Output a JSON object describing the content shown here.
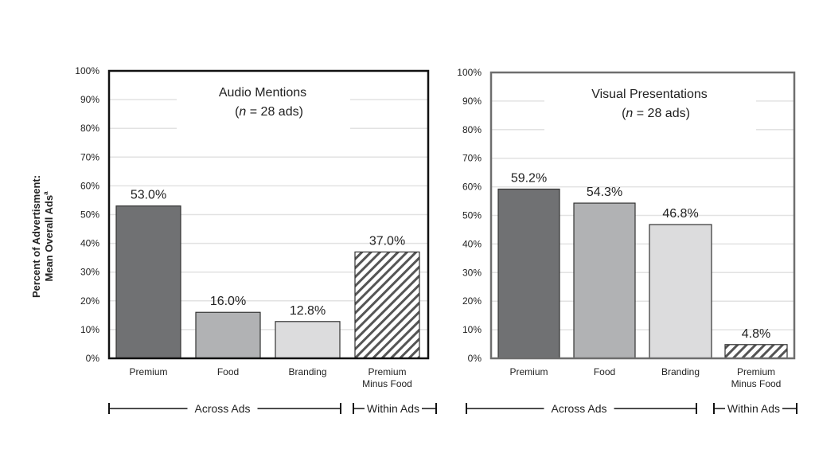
{
  "y_axis_label": {
    "line1": "Percent of Advertisment:",
    "line2": "Mean Overall Ads",
    "superscript": "a"
  },
  "groups": {
    "across": "Across Ads",
    "within": "Within Ads"
  },
  "colors": {
    "premium": "#707173",
    "food": "#b1b2b4",
    "branding": "#dcdcdd",
    "hatch": "#555555",
    "gridline": "#e2e2e2"
  },
  "chart_data": [
    {
      "type": "bar",
      "title": "Audio Mentions",
      "subtitle": {
        "open": "(",
        "n": "n",
        "rest": " = 28 ads)"
      },
      "categories": [
        "Premium",
        "Food",
        "Branding",
        "Premium Minus Food"
      ],
      "category_lines": [
        [
          "Premium"
        ],
        [
          "Food"
        ],
        [
          "Branding"
        ],
        [
          "Premium",
          "Minus Food"
        ]
      ],
      "values": [
        53.0,
        16.0,
        12.8,
        37.0
      ],
      "data_labels": [
        "53.0%",
        "16.0%",
        "12.8%",
        "37.0%"
      ],
      "fills": [
        "premium",
        "food",
        "branding",
        "hatch"
      ],
      "ylim": [
        0,
        100
      ],
      "yticks": [
        "0%",
        "10%",
        "20%",
        "30%",
        "40%",
        "50%",
        "60%",
        "70%",
        "80%",
        "90%",
        "100%"
      ],
      "grid": true,
      "ylabel": "Percent of Advertisment: Mean Overall Ads"
    },
    {
      "type": "bar",
      "title": "Visual Presentations",
      "subtitle": {
        "open": "(",
        "n": "n",
        "rest": " = 28 ads)"
      },
      "categories": [
        "Premium",
        "Food",
        "Branding",
        "Premium Minus Food"
      ],
      "category_lines": [
        [
          "Premium"
        ],
        [
          "Food"
        ],
        [
          "Branding"
        ],
        [
          "Premium",
          "Minus Food"
        ]
      ],
      "values": [
        59.2,
        54.3,
        46.8,
        4.8
      ],
      "data_labels": [
        "59.2%",
        "54.3%",
        "46.8%",
        "4.8%"
      ],
      "fills": [
        "premium",
        "food",
        "branding",
        "hatch"
      ],
      "ylim": [
        0,
        100
      ],
      "yticks": [
        "0%",
        "10%",
        "20%",
        "30%",
        "40%",
        "50%",
        "60%",
        "70%",
        "80%",
        "90%",
        "100%"
      ],
      "grid": true
    }
  ]
}
